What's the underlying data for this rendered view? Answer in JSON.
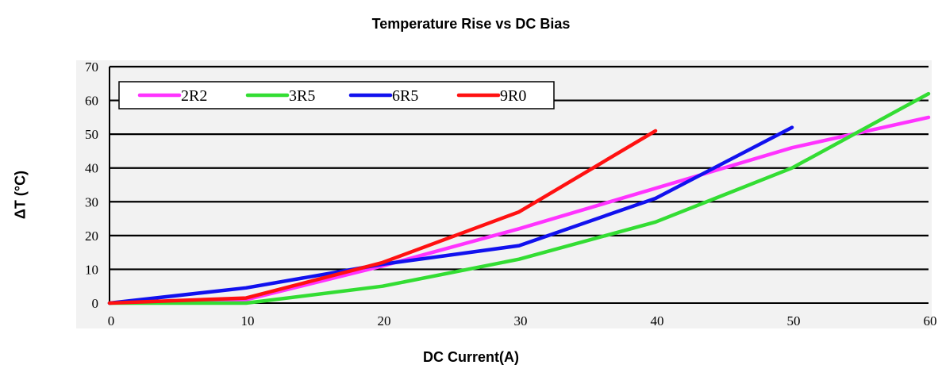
{
  "chart_data": {
    "type": "line",
    "title": "Temperature Rise vs DC Bias",
    "xlabel": "DC Current(A)",
    "ylabel": "ΔT (°C)",
    "xlim": [
      0,
      60
    ],
    "ylim": [
      0,
      70
    ],
    "xticks": [
      0,
      10,
      20,
      30,
      40,
      50,
      60
    ],
    "yticks": [
      0,
      10,
      20,
      30,
      40,
      50,
      60,
      70
    ],
    "grid": "horizontal",
    "legend_position": "top-left",
    "series": [
      {
        "name": "2R2",
        "color": "#ff33ff",
        "x": [
          0,
          10,
          20,
          30,
          40,
          50,
          60
        ],
        "y": [
          0,
          1,
          11,
          22,
          34,
          46,
          55
        ]
      },
      {
        "name": "3R5",
        "color": "#33dd33",
        "x": [
          0,
          10,
          20,
          30,
          40,
          50,
          60
        ],
        "y": [
          0,
          0,
          5,
          13,
          24,
          40,
          62
        ]
      },
      {
        "name": "6R5",
        "color": "#1111ee",
        "x": [
          0,
          10,
          20,
          30,
          40,
          50
        ],
        "y": [
          0,
          4.5,
          11.5,
          17,
          31,
          52
        ]
      },
      {
        "name": "9R0",
        "color": "#ff1111",
        "x": [
          0,
          10,
          20,
          30,
          40
        ],
        "y": [
          0,
          1.5,
          12,
          27,
          51
        ]
      }
    ]
  }
}
